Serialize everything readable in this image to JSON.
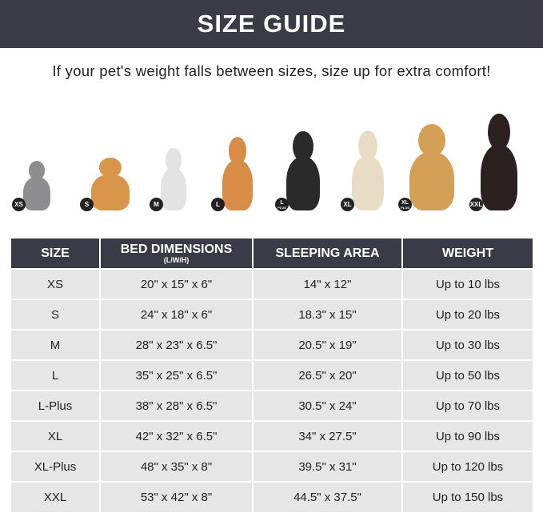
{
  "title": "SIZE GUIDE",
  "subtitle": "If your pet's weight falls between sizes, size up for extra comfort!",
  "pets": [
    {
      "badge": "XS",
      "badge_sub": "",
      "animal": "cat",
      "color": "#8d8d92"
    },
    {
      "badge": "S",
      "badge_sub": "",
      "animal": "pomeranian",
      "color": "#d9954a"
    },
    {
      "badge": "M",
      "badge_sub": "",
      "animal": "french-bulldog",
      "color": "#e3e3e3"
    },
    {
      "badge": "L",
      "badge_sub": "",
      "animal": "shiba-inu",
      "color": "#d98c45"
    },
    {
      "badge": "L",
      "badge_sub": "PLUS",
      "animal": "border-collie",
      "color": "#2a2a2a"
    },
    {
      "badge": "XL",
      "badge_sub": "",
      "animal": "labrador",
      "color": "#e8dcc4"
    },
    {
      "badge": "XL",
      "badge_sub": "PLUS",
      "animal": "golden-retriever",
      "color": "#d4a057"
    },
    {
      "badge": "XXL",
      "badge_sub": "",
      "animal": "doberman",
      "color": "#2b2220"
    }
  ],
  "table": {
    "headers": [
      "SIZE",
      "BED DIMENSIONS",
      "SLEEPING AREA",
      "WEIGHT"
    ],
    "header_sub": "(L/W/H)",
    "rows": [
      [
        "XS",
        "20\" x 15\" x 6\"",
        "14\" x 12\"",
        "Up to 10 lbs"
      ],
      [
        "S",
        "24\" x 18\" x 6\"",
        "18.3\" x 15\"",
        "Up to 20 lbs"
      ],
      [
        "M",
        "28\" x 23\" x 6.5\"",
        "20.5\" x 19\"",
        "Up to 30 lbs"
      ],
      [
        "L",
        "35\" x 25\" x 6.5\"",
        "26.5\" x 20\"",
        "Up to 50 lbs"
      ],
      [
        "L-Plus",
        "38\" x 28\" x 6.5\"",
        "30.5\" x 24\"",
        "Up to 70 lbs"
      ],
      [
        "XL",
        "42\" x 32\" x 6.5\"",
        "34\" x 27.5\"",
        "Up to 90 lbs"
      ],
      [
        "XL-Plus",
        "48\" x 35\" x 8\"",
        "39.5\" x 31\"",
        "Up to 120 lbs"
      ],
      [
        "XXL",
        "53\" x 42\" x 8\"",
        "44.5\" x 37.5\"",
        "Up to 150 lbs"
      ]
    ]
  }
}
